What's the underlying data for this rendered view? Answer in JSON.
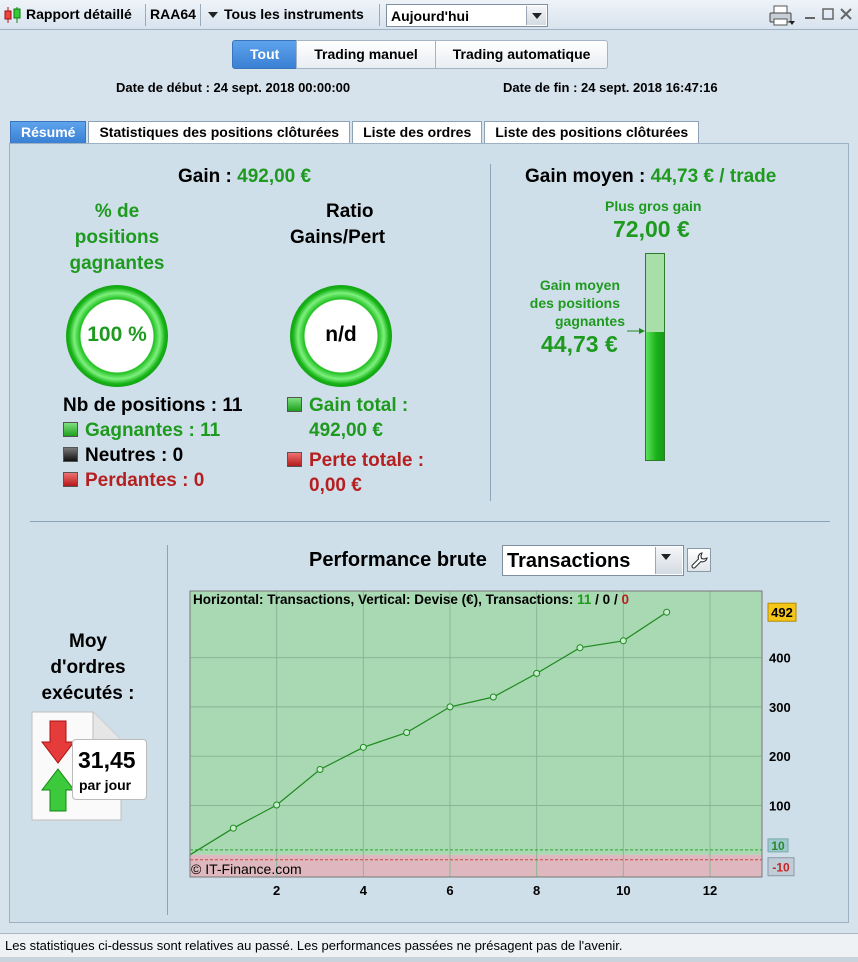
{
  "toolbar": {
    "title": "Rapport détaillé",
    "account": "RAA64",
    "instruments": "Tous les instruments",
    "period": "Aujourd'hui"
  },
  "modes": [
    "Tout",
    "Trading manuel",
    "Trading automatique"
  ],
  "dates": {
    "start": "Date de début : 24 sept. 2018 00:00:00",
    "end": "Date de fin : 24 sept. 2018 16:47:16"
  },
  "tabs": [
    "Résumé",
    "Statistiques des positions clôturées",
    "Liste des ordres",
    "Liste des positions clôturées"
  ],
  "summary": {
    "gain_label": "Gain : ",
    "gain_value": "492,00 €",
    "pct_title_1": "% de",
    "pct_title_2": "positions",
    "pct_title_3": "gagnantes",
    "pct_value": "100 %",
    "ratio_title_1": "Ratio",
    "ratio_title_2": "Gains/Pert",
    "ratio_value": "n/d",
    "nb_positions": "Nb de positions : 11",
    "gagnantes": "Gagnantes : 11",
    "neutres": "Neutres : 0",
    "perdantes": "Perdantes : 0",
    "gain_total_label": "Gain total :",
    "gain_total_value": "492,00 €",
    "perte_totale_label": "Perte totale :",
    "perte_totale_value": "0,00 €"
  },
  "avg": {
    "label": "Gain moyen : ",
    "value": "44,73 € / trade",
    "biggest_label": "Plus gros gain",
    "biggest_value": "72,00 €",
    "avg_win_label_1": "Gain moyen",
    "avg_win_label_2": "des positions",
    "avg_win_label_3": "gagnantes",
    "avg_win_value": "44,73 €",
    "avg_win_fraction": 0.621
  },
  "orders": {
    "title_1": "Moy",
    "title_2": "d'ordres",
    "title_3": "exécutés :",
    "value": "31,45",
    "unit": "par jour"
  },
  "perf": {
    "title": "Performance brute",
    "select": "Transactions",
    "header_prefix": "Horizontal: Transactions, Vertical: Devise (€), Transactions: ",
    "count_win": "11",
    "count_neutral": "0",
    "count_loss": "0",
    "sep": " / ",
    "copyright": "© IT-Finance.com",
    "last_badge": "492",
    "upper_badge": "10",
    "lower_badge": "-10"
  },
  "chart_data": {
    "type": "line",
    "x": [
      0,
      1,
      2,
      3,
      4,
      5,
      6,
      7,
      8,
      9,
      10,
      11
    ],
    "y": [
      0,
      54,
      101,
      173,
      218,
      248,
      300,
      320,
      368,
      420,
      434,
      492
    ],
    "xticks": [
      "2",
      "4",
      "6",
      "8",
      "10",
      "12"
    ],
    "xtick_values": [
      2,
      4,
      6,
      8,
      10,
      12
    ],
    "yticks": [
      "100",
      "200",
      "300",
      "400"
    ],
    "ytick_values": [
      100,
      200,
      300,
      400
    ],
    "xlim": [
      0,
      13.2
    ],
    "ylim": [
      -45,
      535
    ],
    "upper_line": 10,
    "lower_line": -10,
    "grid": true,
    "colors": {
      "line": "#1e8a1e",
      "area": "#a9d9b3",
      "negative": "#dfb8bf"
    }
  },
  "footer": "Les statistiques ci-dessus sont relatives au passé. Les performances passées ne présagent pas de l'avenir."
}
